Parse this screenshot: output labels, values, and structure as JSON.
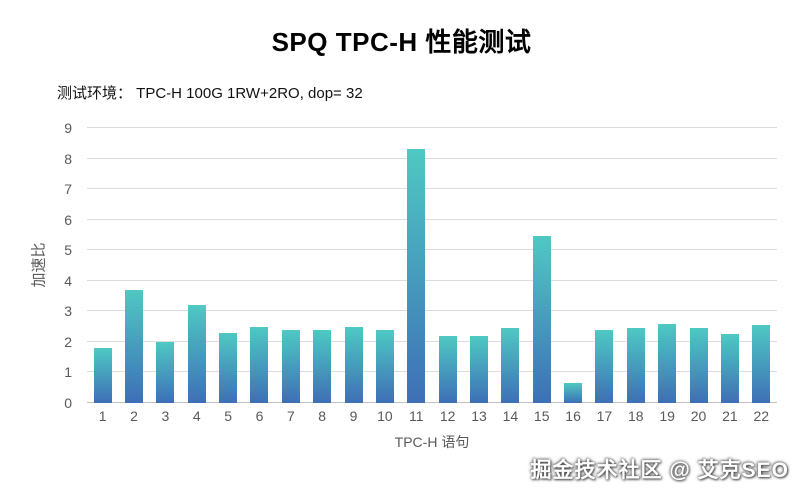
{
  "title": "SPQ TPC-H 性能测试",
  "subtitle": "测试环境：  TPC-H 100G 1RW+2RO, dop= 32",
  "watermark": "掘金技术社区 @ 艾克SEO",
  "colors": {
    "bar_top": "#4ec9c3",
    "bar_bottom": "#3e6fb6",
    "gridline": "#dcdcdc",
    "axis_text": "#595959"
  },
  "chart_data": {
    "type": "bar",
    "title": "SPQ TPC-H 性能测试",
    "subtitle": "测试环境： TPC-H 100G 1RW+2RO, dop= 32",
    "categories": [
      "1",
      "2",
      "3",
      "4",
      "5",
      "6",
      "7",
      "8",
      "9",
      "10",
      "11",
      "12",
      "13",
      "14",
      "15",
      "16",
      "17",
      "18",
      "19",
      "20",
      "21",
      "22"
    ],
    "values": [
      1.8,
      3.7,
      2.0,
      3.2,
      2.3,
      2.5,
      2.4,
      2.4,
      2.5,
      2.4,
      8.3,
      2.2,
      2.2,
      2.45,
      5.45,
      0.65,
      2.4,
      2.45,
      2.6,
      2.45,
      2.25,
      2.55
    ],
    "xlabel": "TPC-H 语句",
    "ylabel": "加速比",
    "ylim": [
      0,
      9
    ],
    "ytick_step": 1,
    "grid": true,
    "legend": "none",
    "bar_color_top": "#4ec9c3",
    "bar_color_bottom": "#3e6fb6"
  }
}
